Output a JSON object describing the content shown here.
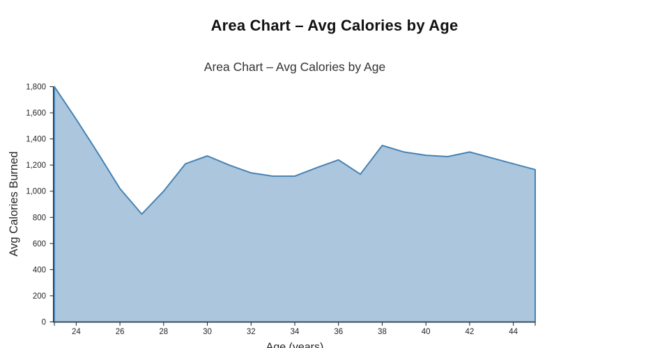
{
  "page": {
    "background": "#ffffff"
  },
  "chart_data": {
    "type": "area",
    "title": "Area Chart – Avg Calories by Age",
    "subtitle": "Area Chart – Avg Calories by Age",
    "xlabel": "Age (years)",
    "ylabel": "Avg Calories Burned",
    "x": [
      23,
      24,
      25,
      26,
      27,
      28,
      29,
      30,
      31,
      32,
      33,
      34,
      35,
      36,
      37,
      38,
      39,
      40,
      41,
      42,
      43,
      44,
      45
    ],
    "values": [
      1800,
      1550,
      1290,
      1020,
      825,
      1000,
      1210,
      1270,
      1200,
      1140,
      1115,
      1115,
      1180,
      1240,
      1130,
      1350,
      1300,
      1275,
      1265,
      1300,
      1255,
      1210,
      1165
    ],
    "xlim": [
      23,
      45
    ],
    "ylim": [
      0,
      1800
    ],
    "xticks": [
      24,
      26,
      28,
      30,
      32,
      34,
      36,
      38,
      40,
      42,
      44
    ],
    "yticks": [
      0,
      200,
      400,
      600,
      800,
      1000,
      1200,
      1400,
      1600,
      1800
    ],
    "ytick_format": "thousands-comma",
    "grid": false,
    "legend": false,
    "colors": {
      "area_fill": "#4682b4",
      "area_fill_opacity": 0.45,
      "area_stroke": "#4682b4",
      "axis": "#1a1a1a",
      "tick_text": "#262626",
      "axis_label_text": "#262626",
      "title_text": "#111111",
      "subtitle_text": "#333333"
    }
  }
}
